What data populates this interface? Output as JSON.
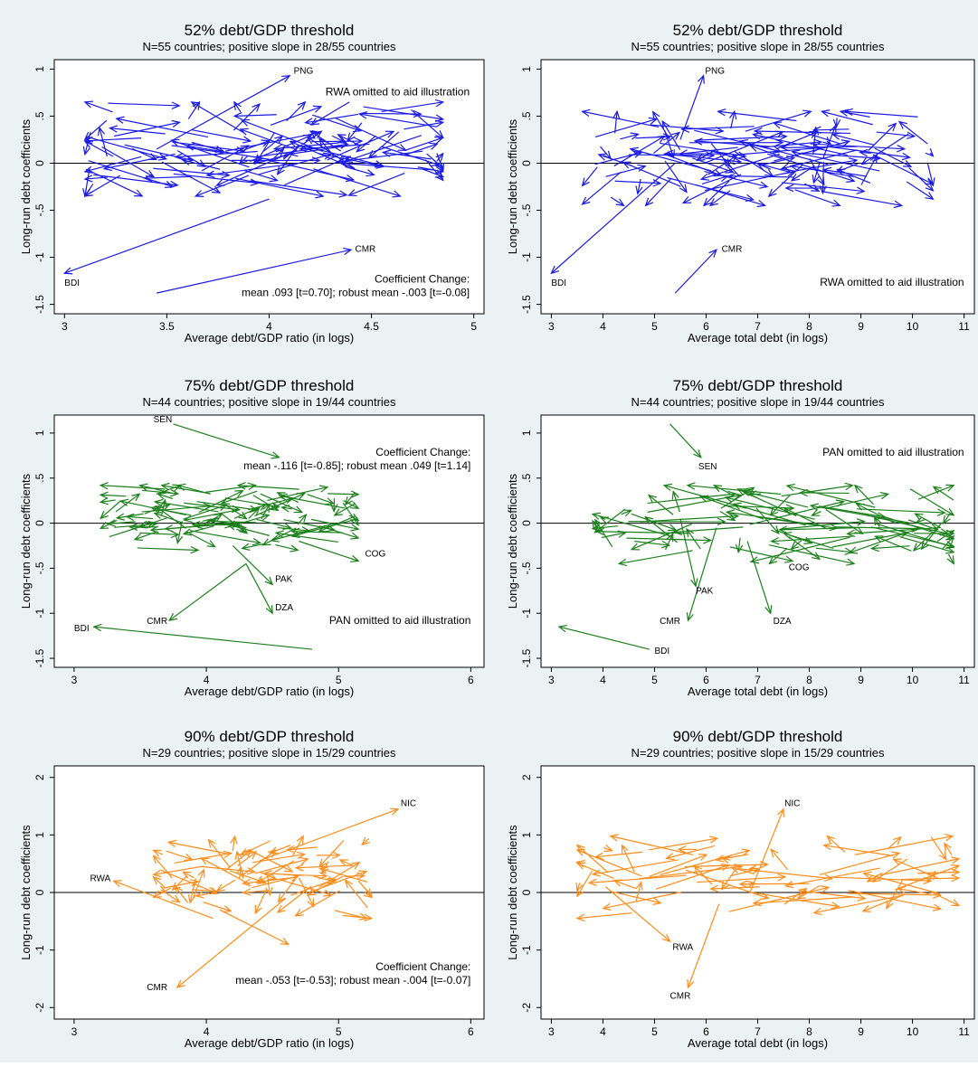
{
  "colors": {
    "background": "#eaf2f3",
    "plot_bg": "#ffffff",
    "blue": "#1a1ae6",
    "green": "#1a801a",
    "orange": "#ff8c1a"
  },
  "chart_data": [
    {
      "type": "scatter",
      "subtype": "arrows",
      "title": "52% debt/GDP threshold",
      "subtitle": "N=55 countries; positive slope in 28/55 countries",
      "xlabel": "Average debt/GDP ratio (in logs)",
      "ylabel": "Long-run debt coefficients",
      "color": "#1a1ae6",
      "xlim": [
        2.95,
        5.05
      ],
      "ylim": [
        -1.6,
        1.1
      ],
      "xticks": [
        3,
        3.5,
        4,
        4.5,
        5
      ],
      "xticklabels": [
        "3",
        "3.5",
        "4",
        "4.5",
        "5"
      ],
      "yticks": [
        -1.5,
        -1,
        -0.5,
        0,
        0.5,
        1
      ],
      "yticklabels": [
        "-1.5",
        "-1",
        "-.5",
        "0",
        ".5",
        "1"
      ],
      "annotations": [
        {
          "text": "RWA omitted to aid illustration",
          "x": 4.98,
          "y": 0.72,
          "anchor": "end"
        }
      ],
      "coef_note": [
        "Coefficient Change:",
        "mean .093 [t=0.70]; robust mean -.003 [t=-0.08]"
      ],
      "coef_note_pos": {
        "x": 4.98,
        "y": -1.27
      },
      "labeled_arrows": [
        {
          "label": "PNG",
          "x0": 3.45,
          "y0": 0.15,
          "x1": 4.1,
          "y1": 0.93,
          "lx": 4.12,
          "ly": 0.95
        },
        {
          "label": "BDI",
          "x0": 4.0,
          "y0": -0.38,
          "x1": 3.0,
          "y1": -1.17,
          "lx": 3.0,
          "ly": -1.3
        },
        {
          "label": "CMR",
          "x0": 3.45,
          "y0": -1.38,
          "x1": 4.4,
          "y1": -0.92,
          "lx": 4.42,
          "ly": -0.94
        }
      ],
      "cluster": {
        "xmin": 3.1,
        "xmax": 4.85,
        "ymin": -0.35,
        "ymax": 0.65
      }
    },
    {
      "type": "scatter",
      "subtype": "arrows",
      "title": "52% debt/GDP threshold",
      "subtitle": "N=55 countries; positive slope in 28/55 countries",
      "xlabel": "Average total debt (in logs)",
      "ylabel": "Long-run debt coefficients",
      "color": "#1a1ae6",
      "xlim": [
        2.8,
        11.2
      ],
      "ylim": [
        -1.6,
        1.1
      ],
      "xticks": [
        3,
        4,
        5,
        6,
        7,
        8,
        9,
        10,
        11
      ],
      "xticklabels": [
        "3",
        "4",
        "5",
        "6",
        "7",
        "8",
        "9",
        "10",
        "11"
      ],
      "yticks": [
        -1.5,
        -1,
        -0.5,
        0,
        0.5,
        1
      ],
      "yticklabels": [
        "-1.5",
        "-1",
        "-.5",
        "0",
        ".5",
        "1"
      ],
      "annotations": [
        {
          "text": "RWA omitted to aid illustration",
          "x": 11.0,
          "y": -1.3,
          "anchor": "end"
        }
      ],
      "coef_note": [],
      "labeled_arrows": [
        {
          "label": "PNG",
          "x0": 5.5,
          "y0": 0.25,
          "x1": 5.95,
          "y1": 0.93,
          "lx": 5.98,
          "ly": 0.95
        },
        {
          "label": "BDI",
          "x0": 5.4,
          "y0": 0.0,
          "x1": 3.0,
          "y1": -1.17,
          "lx": 3.0,
          "ly": -1.3
        },
        {
          "label": "CMR",
          "x0": 5.4,
          "y0": -1.38,
          "x1": 6.2,
          "y1": -0.92,
          "lx": 6.3,
          "ly": -0.94
        }
      ],
      "cluster": {
        "xmin": 3.6,
        "xmax": 10.4,
        "ymin": -0.45,
        "ymax": 0.55
      }
    },
    {
      "type": "scatter",
      "subtype": "arrows",
      "title": "75% debt/GDP threshold",
      "subtitle": "N=44 countries; positive slope in 19/44 countries",
      "xlabel": "Average debt/GDP ratio (in logs)",
      "ylabel": "Long-run debt coefficients",
      "color": "#1a801a",
      "xlim": [
        2.85,
        6.1
      ],
      "ylim": [
        -1.6,
        1.2
      ],
      "xticks": [
        3,
        4,
        5,
        6
      ],
      "xticklabels": [
        "3",
        "4",
        "5",
        "6"
      ],
      "yticks": [
        -1.5,
        -1,
        -0.5,
        0,
        0.5,
        1
      ],
      "yticklabels": [
        "-1.5",
        "-1",
        "-.5",
        "0",
        ".5",
        "1"
      ],
      "annotations": [
        {
          "text": "PAN omitted to aid illustration",
          "x": 6.0,
          "y": -1.12,
          "anchor": "end"
        }
      ],
      "coef_note": [
        "Coefficient Change:",
        "mean -.116 [t=-0.85]; robust mean .049 [t=1.14]"
      ],
      "coef_note_pos": {
        "x": 6.0,
        "y": 0.75
      },
      "labeled_arrows": [
        {
          "label": "SEN",
          "x0": 3.75,
          "y0": 1.1,
          "x1": 4.55,
          "y1": 0.73,
          "lx": 3.6,
          "ly": 1.12
        },
        {
          "label": "BDI",
          "x0": 4.8,
          "y0": -1.4,
          "x1": 3.15,
          "y1": -1.15,
          "lx": 3.0,
          "ly": -1.2
        },
        {
          "label": "CMR",
          "x0": 4.3,
          "y0": -0.45,
          "x1": 3.72,
          "y1": -1.08,
          "lx": 3.55,
          "ly": -1.12
        },
        {
          "label": "PAK",
          "x0": 4.2,
          "y0": -0.25,
          "x1": 4.5,
          "y1": -0.68,
          "lx": 4.52,
          "ly": -0.65
        },
        {
          "label": "DZA",
          "x0": 4.3,
          "y0": -0.45,
          "x1": 4.5,
          "y1": -1.0,
          "lx": 4.52,
          "ly": -0.97
        },
        {
          "label": "COG",
          "x0": 4.7,
          "y0": -0.2,
          "x1": 5.15,
          "y1": -0.42,
          "lx": 5.2,
          "ly": -0.37
        }
      ],
      "cluster": {
        "xmin": 3.2,
        "xmax": 5.15,
        "ymin": -0.3,
        "ymax": 0.42
      }
    },
    {
      "type": "scatter",
      "subtype": "arrows",
      "title": "75% debt/GDP threshold",
      "subtitle": "N=44 countries; positive slope in 19/44 countries",
      "xlabel": "Average total debt (in logs)",
      "ylabel": "Long-run debt coefficients",
      "color": "#1a801a",
      "xlim": [
        2.8,
        11.2
      ],
      "ylim": [
        -1.6,
        1.2
      ],
      "xticks": [
        3,
        4,
        5,
        6,
        7,
        8,
        9,
        10,
        11
      ],
      "xticklabels": [
        "3",
        "4",
        "5",
        "6",
        "7",
        "8",
        "9",
        "10",
        "11"
      ],
      "yticks": [
        -1.5,
        -1,
        -0.5,
        0,
        0.5,
        1
      ],
      "yticklabels": [
        "-1.5",
        "-1",
        "-.5",
        "0",
        ".5",
        "1"
      ],
      "annotations": [
        {
          "text": "PAN omitted to aid illustration",
          "x": 11.0,
          "y": 0.75,
          "anchor": "end"
        }
      ],
      "coef_note": [],
      "labeled_arrows": [
        {
          "label": "SEN",
          "x0": 5.3,
          "y0": 1.1,
          "x1": 5.9,
          "y1": 0.73,
          "lx": 5.85,
          "ly": 0.6
        },
        {
          "label": "BDI",
          "x0": 4.9,
          "y0": -1.4,
          "x1": 3.15,
          "y1": -1.15,
          "lx": 5.0,
          "ly": -1.45
        },
        {
          "label": "CMR",
          "x0": 6.2,
          "y0": -0.05,
          "x1": 5.65,
          "y1": -1.08,
          "lx": 5.1,
          "ly": -1.12
        },
        {
          "label": "PAK",
          "x0": 5.5,
          "y0": 0.05,
          "x1": 5.8,
          "y1": -0.7,
          "lx": 5.8,
          "ly": -0.78
        },
        {
          "label": "DZA",
          "x0": 6.8,
          "y0": -0.2,
          "x1": 7.25,
          "y1": -1.0,
          "lx": 7.3,
          "ly": -1.12
        },
        {
          "label": "COG",
          "x0": 7.6,
          "y0": -0.15,
          "x1": 8.2,
          "y1": -0.4,
          "lx": 7.6,
          "ly": -0.52
        }
      ],
      "cluster": {
        "xmin": 3.8,
        "xmax": 10.8,
        "ymin": -0.45,
        "ymax": 0.42
      }
    },
    {
      "type": "scatter",
      "subtype": "arrows",
      "title": "90% debt/GDP threshold",
      "subtitle": "N=29 countries; positive slope in 15/29 countries",
      "xlabel": "Average debt/GDP ratio (in logs)",
      "ylabel": "Long-run debt coefficients",
      "color": "#ff8c1a",
      "xlim": [
        2.85,
        6.1
      ],
      "ylim": [
        -2.2,
        2.2
      ],
      "xticks": [
        3,
        4,
        5,
        6
      ],
      "xticklabels": [
        "3",
        "4",
        "5",
        "6"
      ],
      "yticks": [
        -2,
        -1,
        0,
        1,
        2
      ],
      "yticklabels": [
        "-2",
        "-1",
        "0",
        "1",
        "2"
      ],
      "annotations": [],
      "coef_note": [
        "Coefficient Change:",
        "mean -.053 [t=-0.53]; robust mean -.004 [t=-0.07]"
      ],
      "coef_note_pos": {
        "x": 6.0,
        "y": -1.35
      },
      "labeled_arrows": [
        {
          "label": "NIC",
          "x0": 4.4,
          "y0": 0.55,
          "x1": 5.45,
          "y1": 1.45,
          "lx": 5.47,
          "ly": 1.5
        },
        {
          "label": "RWA",
          "x0": 4.05,
          "y0": -0.45,
          "x1": 3.3,
          "y1": 0.2,
          "lx": 3.12,
          "ly": 0.2
        },
        {
          "label": "CMR",
          "x0": 4.6,
          "y0": -0.1,
          "x1": 3.78,
          "y1": -1.65,
          "lx": 3.55,
          "ly": -1.7
        },
        {
          "label": "",
          "x0": 4.1,
          "y0": -0.3,
          "x1": 4.62,
          "y1": -0.9,
          "lx": 0,
          "ly": 0
        }
      ],
      "cluster": {
        "xmin": 3.6,
        "xmax": 5.25,
        "ymin": -0.45,
        "ymax": 0.98
      }
    },
    {
      "type": "scatter",
      "subtype": "arrows",
      "title": "90% debt/GDP threshold",
      "subtitle": "N=29 countries; positive slope in 15/29 countries",
      "xlabel": "Average total debt (in logs)",
      "ylabel": "Long-run debt coefficients",
      "color": "#ff8c1a",
      "xlim": [
        2.8,
        11.2
      ],
      "ylim": [
        -2.2,
        2.2
      ],
      "xticks": [
        3,
        4,
        5,
        6,
        7,
        8,
        9,
        10,
        11
      ],
      "xticklabels": [
        "3",
        "4",
        "5",
        "6",
        "7",
        "8",
        "9",
        "10",
        "11"
      ],
      "yticks": [
        -2,
        -1,
        0,
        1,
        2
      ],
      "yticklabels": [
        "-2",
        "-1",
        "0",
        "1",
        "2"
      ],
      "annotations": [],
      "coef_note": [],
      "labeled_arrows": [
        {
          "label": "NIC",
          "x0": 6.85,
          "y0": 0.0,
          "x1": 7.5,
          "y1": 1.45,
          "lx": 7.52,
          "ly": 1.5
        },
        {
          "label": "RWA",
          "x0": 4.05,
          "y0": 0.1,
          "x1": 5.3,
          "y1": -0.85,
          "lx": 5.35,
          "ly": -1.0
        },
        {
          "label": "CMR",
          "x0": 6.25,
          "y0": -0.2,
          "x1": 5.65,
          "y1": -1.65,
          "lx": 5.3,
          "ly": -1.85
        }
      ],
      "cluster": {
        "xmin": 3.5,
        "xmax": 10.9,
        "ymin": -0.45,
        "ymax": 0.98
      }
    }
  ]
}
